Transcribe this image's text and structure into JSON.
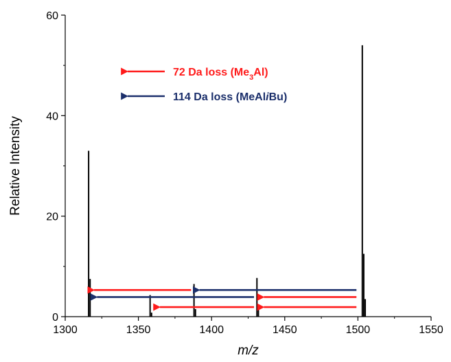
{
  "chart_data": {
    "type": "line",
    "xlabel": "m/z",
    "ylabel": "Relative Intensity",
    "xlim": [
      1300,
      1550
    ],
    "ylim": [
      0,
      60
    ],
    "x_ticks": [
      1300,
      1350,
      1400,
      1450,
      1500,
      1550
    ],
    "y_ticks": [
      0,
      20,
      40,
      60
    ],
    "colors": {
      "spectrum": "#000000",
      "red": "#ff1a1a",
      "blue": "#1b2f6b"
    },
    "series": [
      {
        "peaks": [
          {
            "x": 1316,
            "y": 33,
            "shoulders": [
              {
                "x": 1317,
                "y": 7.5
              }
            ]
          },
          {
            "x": 1358,
            "y": 4.3,
            "shoulders": [
              {
                "x": 1359,
                "y": 0.8
              }
            ]
          },
          {
            "x": 1388,
            "y": 6.5,
            "shoulders": [
              {
                "x": 1389,
                "y": 1.5
              }
            ]
          },
          {
            "x": 1431,
            "y": 7.7,
            "shoulders": [
              {
                "x": 1432,
                "y": 1.8
              }
            ]
          },
          {
            "x": 1503,
            "y": 54,
            "shoulders": [
              {
                "x": 1504,
                "y": 12.5
              },
              {
                "x": 1505,
                "y": 3.5
              }
            ]
          }
        ]
      }
    ],
    "annotations": [
      {
        "from": 1386,
        "to": 1316,
        "y": 5.3,
        "color": "red"
      },
      {
        "from": 1499,
        "to": 1388,
        "y": 5.3,
        "color": "blue"
      },
      {
        "from": 1429,
        "to": 1318,
        "y": 3.9,
        "color": "blue"
      },
      {
        "from": 1499,
        "to": 1432,
        "y": 3.9,
        "color": "red"
      },
      {
        "from": 1429,
        "to": 1361,
        "y": 1.9,
        "color": "red"
      },
      {
        "from": 1499,
        "to": 1432,
        "y": 1.9,
        "color": "red"
      }
    ],
    "legend": {
      "placement": "top-left",
      "items": [
        {
          "color": "red",
          "parts": [
            {
              "text": "72 Da loss (Me"
            },
            {
              "text": "3",
              "sub": true
            },
            {
              "text": "Al)"
            }
          ]
        },
        {
          "color": "blue",
          "parts": [
            {
              "text": "114 Da loss (MeAl"
            },
            {
              "text": "i",
              "italic": true
            },
            {
              "text": "Bu)"
            }
          ]
        }
      ]
    }
  }
}
